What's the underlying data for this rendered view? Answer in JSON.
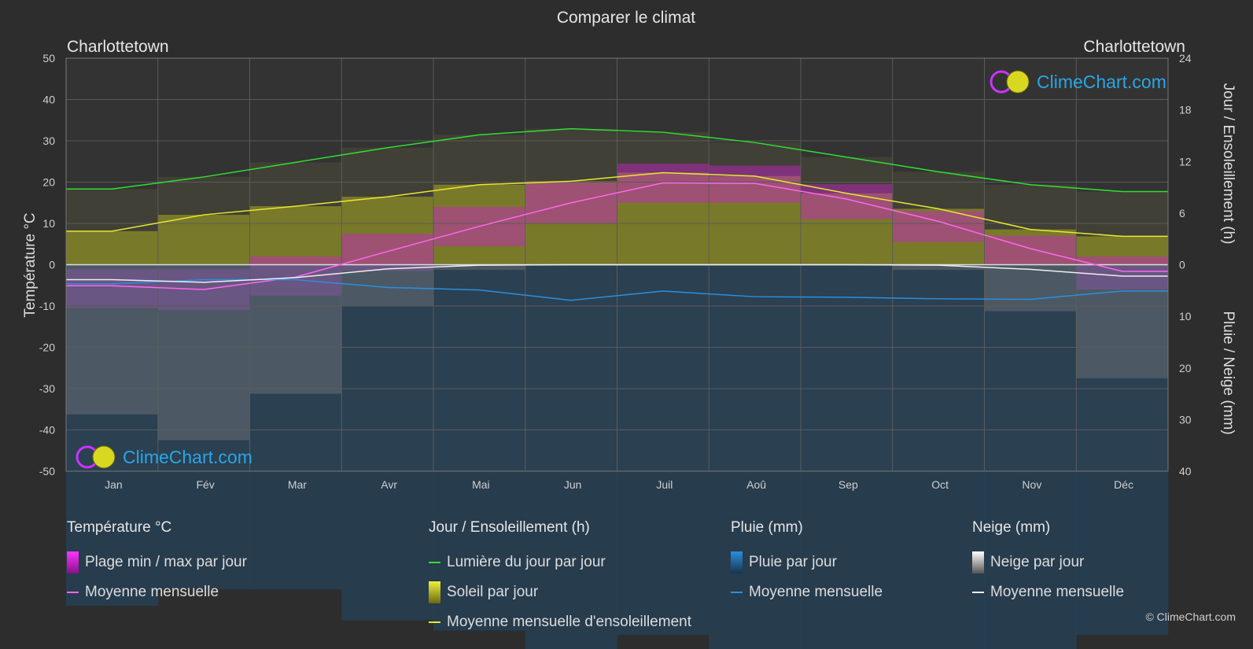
{
  "title": "Comparer le climat",
  "city_left": "Charlottetown",
  "city_right": "Charlottetown",
  "brand": "ClimeChart.com",
  "copyright": "© ClimeChart.com",
  "colors": {
    "background": "#2d2d2d",
    "daylight": "#33dd33",
    "sunshine_line": "#e8e830",
    "temp_mean": "#ff66ee",
    "rain_mean": "#2a8fe0",
    "snow_mean": "#eeeeee",
    "temp_range": "#cc22cc",
    "sunshine_fill": "#a8a820",
    "rain_bar": "#1d5a8a",
    "snow_bar": "#8a8a8a"
  },
  "legend": {
    "temperature": {
      "title": "Température °C",
      "range_label": "Plage min / max par jour",
      "mean_label": "Moyenne mensuelle"
    },
    "sun": {
      "title": "Jour / Ensoleillement (h)",
      "daylight_label": "Lumière du jour par jour",
      "sunshine_label": "Soleil par jour",
      "sunshine_mean_label": "Moyenne mensuelle d'ensoleillement"
    },
    "rain": {
      "title": "Pluie (mm)",
      "day_label": "Pluie par jour",
      "mean_label": "Moyenne mensuelle"
    },
    "snow": {
      "title": "Neige (mm)",
      "day_label": "Neige par jour",
      "mean_label": "Moyenne mensuelle"
    }
  },
  "chart_data": {
    "type": "line",
    "title": "Comparer le climat",
    "months": [
      "Jan",
      "Fév",
      "Mar",
      "Avr",
      "Mai",
      "Jun",
      "Juil",
      "Aoû",
      "Sep",
      "Oct",
      "Nov",
      "Déc"
    ],
    "left_axis": {
      "label": "Température °C",
      "range": [
        -50,
        50
      ],
      "ticks": [
        50,
        40,
        30,
        20,
        10,
        0,
        -10,
        -20,
        -30,
        -40,
        -50
      ]
    },
    "right_axis_top": {
      "label": "Jour / Ensoleillement (h)",
      "range": [
        0,
        24
      ],
      "ticks": [
        24,
        18,
        12,
        6,
        0
      ]
    },
    "right_axis_bottom": {
      "label": "Pluie / Neige (mm)",
      "range": [
        0,
        40
      ],
      "ticks": [
        0,
        10,
        20,
        30,
        40
      ]
    },
    "grid": true,
    "series": [
      {
        "name": "Lumière du jour par jour",
        "axis": "hours",
        "values": [
          8.8,
          10.2,
          11.9,
          13.6,
          15.1,
          15.8,
          15.4,
          14.2,
          12.5,
          10.8,
          9.3,
          8.5
        ]
      },
      {
        "name": "Moyenne mensuelle d'ensoleillement",
        "axis": "hours",
        "values": [
          3.9,
          5.8,
          6.8,
          7.9,
          9.3,
          9.7,
          10.7,
          10.3,
          8.3,
          6.5,
          4.1,
          3.3
        ]
      },
      {
        "name": "Moyenne mensuelle",
        "kind": "temperature",
        "axis": "temp",
        "values": [
          -5.1,
          -6.0,
          -3.0,
          3.2,
          9.3,
          15.0,
          19.8,
          19.7,
          15.9,
          10.5,
          3.9,
          -1.6
        ]
      },
      {
        "name": "Moyenne mensuelle",
        "kind": "rain",
        "axis": "mm",
        "values": [
          3.7,
          2.9,
          2.9,
          4.4,
          4.9,
          6.9,
          5.1,
          6.2,
          6.3,
          6.6,
          6.7,
          5.1
        ]
      },
      {
        "name": "Moyenne mensuelle",
        "kind": "snow",
        "axis": "mm",
        "values": [
          2.9,
          3.4,
          2.5,
          0.8,
          0.1,
          0.0,
          0.0,
          0.0,
          0.0,
          0.1,
          0.9,
          2.2
        ]
      },
      {
        "name": "Plage min / max par jour",
        "kind": "temperature_range",
        "axis": "temp",
        "min": [
          -10.5,
          -11.0,
          -7.5,
          -1.5,
          4.5,
          10.0,
          15.0,
          15.0,
          11.0,
          5.5,
          0.0,
          -6.0
        ],
        "max": [
          -1.0,
          -1.0,
          2.0,
          7.5,
          14.0,
          20.0,
          24.5,
          24.0,
          19.5,
          13.0,
          7.0,
          2.0
        ]
      }
    ]
  }
}
